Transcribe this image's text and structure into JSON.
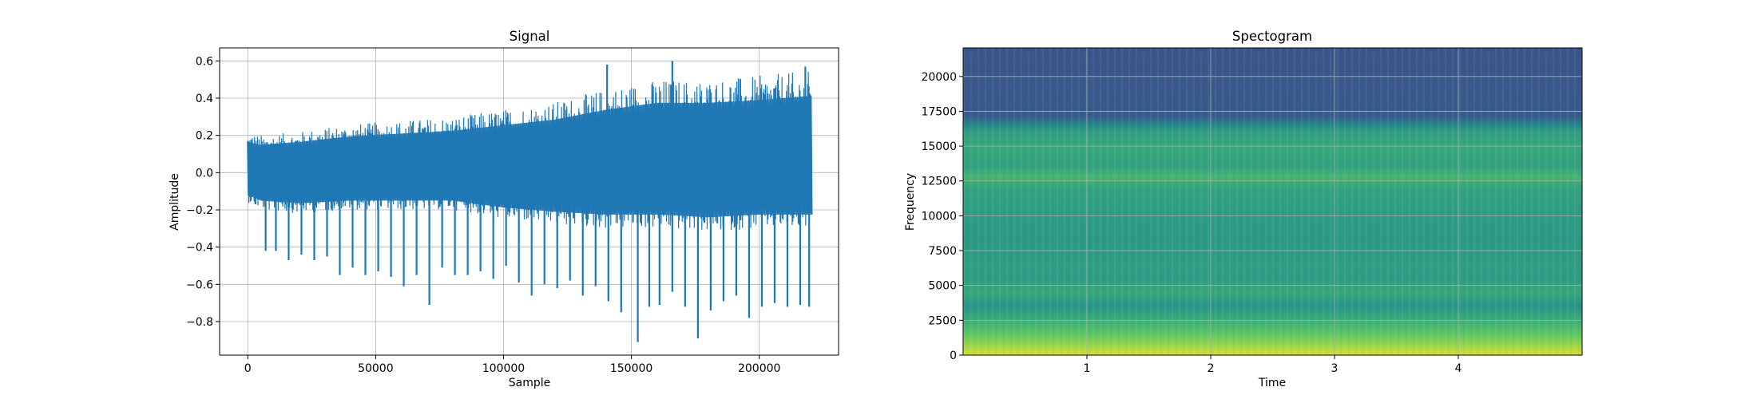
{
  "chart_data": [
    {
      "type": "line",
      "title": "Signal",
      "xlabel": "Sample",
      "ylabel": "Amplitude",
      "xlim": [
        -11000,
        231000
      ],
      "ylim": [
        -0.98,
        0.67
      ],
      "grid": true,
      "line_color": "#1f77b4",
      "x_ticks": [
        0,
        50000,
        100000,
        150000,
        200000
      ],
      "x_tick_labels": [
        "0",
        "50000",
        "100000",
        "150000",
        "200000"
      ],
      "y_ticks": [
        -0.8,
        -0.6,
        -0.4,
        -0.2,
        0.0,
        0.2,
        0.4,
        0.6
      ],
      "y_tick_labels": [
        "−0.8",
        "−0.6",
        "−0.4",
        "−0.2",
        "0.0",
        "0.2",
        "0.4",
        "0.6"
      ],
      "x_range": [
        0,
        220500
      ],
      "envelope": {
        "x": [
          0,
          5000,
          20000,
          40000,
          60000,
          80000,
          100000,
          120000,
          140000,
          160000,
          180000,
          200000,
          220500
        ],
        "upper": [
          0.22,
          0.2,
          0.22,
          0.26,
          0.28,
          0.3,
          0.34,
          0.38,
          0.45,
          0.5,
          0.5,
          0.52,
          0.55
        ],
        "lower": [
          -0.16,
          -0.2,
          -0.22,
          -0.2,
          -0.2,
          -0.2,
          -0.25,
          -0.28,
          -0.3,
          -0.3,
          -0.32,
          -0.3,
          -0.3
        ]
      },
      "notable_peaks": [
        {
          "x": 166000,
          "y": 0.6
        },
        {
          "x": 140500,
          "y": 0.58
        },
        {
          "x": 218000,
          "y": 0.57
        }
      ],
      "negative_spikes": [
        {
          "x": 3000,
          "y": -0.17
        },
        {
          "x": 7000,
          "y": -0.42
        },
        {
          "x": 11000,
          "y": -0.42
        },
        {
          "x": 16000,
          "y": -0.47
        },
        {
          "x": 21000,
          "y": -0.44
        },
        {
          "x": 26000,
          "y": -0.47
        },
        {
          "x": 31000,
          "y": -0.45
        },
        {
          "x": 36000,
          "y": -0.55
        },
        {
          "x": 41000,
          "y": -0.51
        },
        {
          "x": 46000,
          "y": -0.55
        },
        {
          "x": 51000,
          "y": -0.53
        },
        {
          "x": 56000,
          "y": -0.56
        },
        {
          "x": 61000,
          "y": -0.61
        },
        {
          "x": 66000,
          "y": -0.55
        },
        {
          "x": 71000,
          "y": -0.71
        },
        {
          "x": 76000,
          "y": -0.51
        },
        {
          "x": 81000,
          "y": -0.55
        },
        {
          "x": 86000,
          "y": -0.55
        },
        {
          "x": 91000,
          "y": -0.53
        },
        {
          "x": 96000,
          "y": -0.57
        },
        {
          "x": 101000,
          "y": -0.5
        },
        {
          "x": 106000,
          "y": -0.59
        },
        {
          "x": 111000,
          "y": -0.66
        },
        {
          "x": 116000,
          "y": -0.6
        },
        {
          "x": 121000,
          "y": -0.62
        },
        {
          "x": 126000,
          "y": -0.58
        },
        {
          "x": 131000,
          "y": -0.66
        },
        {
          "x": 136000,
          "y": -0.61
        },
        {
          "x": 141000,
          "y": -0.69
        },
        {
          "x": 146000,
          "y": -0.75
        },
        {
          "x": 152500,
          "y": -0.91
        },
        {
          "x": 157000,
          "y": -0.72
        },
        {
          "x": 161000,
          "y": -0.71
        },
        {
          "x": 166000,
          "y": -0.64
        },
        {
          "x": 171000,
          "y": -0.72
        },
        {
          "x": 176000,
          "y": -0.89
        },
        {
          "x": 181000,
          "y": -0.74
        },
        {
          "x": 186000,
          "y": -0.69
        },
        {
          "x": 191000,
          "y": -0.66
        },
        {
          "x": 196000,
          "y": -0.78
        },
        {
          "x": 201000,
          "y": -0.72
        },
        {
          "x": 206000,
          "y": -0.7
        },
        {
          "x": 211000,
          "y": -0.72
        },
        {
          "x": 216000,
          "y": -0.71
        },
        {
          "x": 219500,
          "y": -0.72
        }
      ]
    },
    {
      "type": "heatmap",
      "title": "Spectogram",
      "xlabel": "Time",
      "ylabel": "Frequency",
      "xlim": [
        0,
        5.0
      ],
      "ylim": [
        0,
        22050
      ],
      "grid": true,
      "colormap": "viridis",
      "x_ticks": [
        1,
        2,
        3,
        4
      ],
      "x_tick_labels": [
        "1",
        "2",
        "3",
        "4"
      ],
      "y_ticks": [
        0,
        2500,
        5000,
        7500,
        10000,
        12500,
        15000,
        17500,
        20000
      ],
      "y_tick_labels": [
        "0",
        "2500",
        "5000",
        "7500",
        "10000",
        "12500",
        "15000",
        "17500",
        "20000"
      ],
      "intensity_profile": {
        "frequency": [
          0,
          600,
          1500,
          2500,
          3500,
          4500,
          5500,
          6500,
          8000,
          10000,
          12000,
          12800,
          13500,
          15000,
          16000,
          16500,
          17200,
          22050
        ],
        "level": [
          0.94,
          0.86,
          0.74,
          0.62,
          0.52,
          0.6,
          0.55,
          0.56,
          0.54,
          0.55,
          0.58,
          0.66,
          0.57,
          0.6,
          0.56,
          0.46,
          0.28,
          0.26
        ]
      },
      "high_band_cutoff": 17200
    }
  ]
}
